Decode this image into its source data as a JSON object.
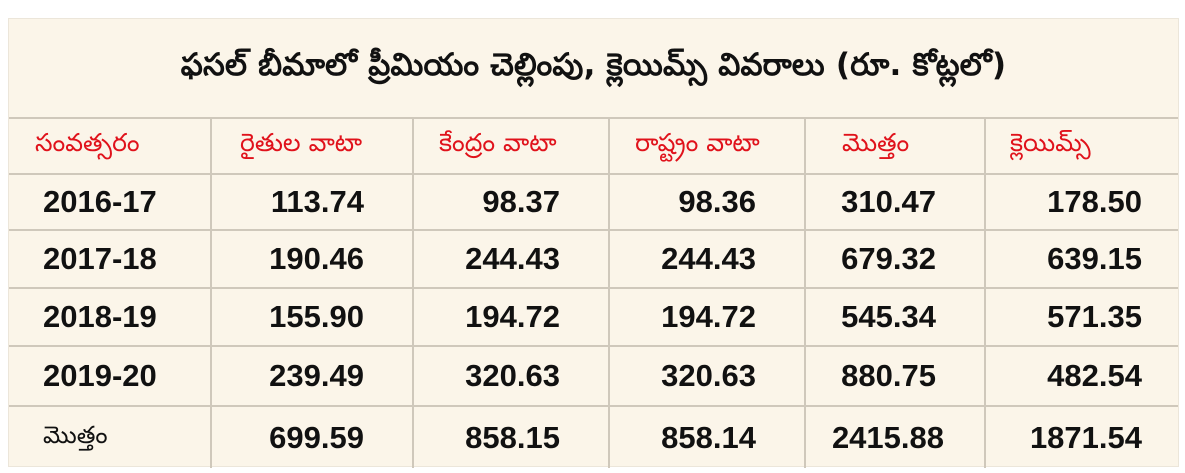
{
  "title": "ఫసల్ బీమాలో ప్రీమియం చెల్లింపు, క్లెయిమ్స్ వివరాలు (రూ. కోట్లలో)",
  "colors": {
    "background": "#fbf5e9",
    "header_text": "#e0121b",
    "body_text": "#111111",
    "grid": "#cfc8bb"
  },
  "table": {
    "headers": [
      "సంవత్సరం",
      "రైతుల వాటా",
      "కేంద్రం వాటా",
      "రాష్ట్రం వాటా",
      "మొత్తం",
      "క్లెయిమ్స్"
    ],
    "rows": [
      [
        "2016-17",
        "113.74",
        "98.37",
        "98.36",
        "310.47",
        "178.50"
      ],
      [
        "2017-18",
        "190.46",
        "244.43",
        "244.43",
        "679.32",
        "639.15"
      ],
      [
        "2018-19",
        "155.90",
        "194.72",
        "194.72",
        "545.34",
        "571.35"
      ],
      [
        "2019-20",
        "239.49",
        "320.63",
        "320.63",
        "880.75",
        "482.54"
      ]
    ],
    "total": [
      "మొత్తం",
      "699.59",
      "858.15",
      "858.14",
      "2415.88",
      "1871.54"
    ]
  }
}
